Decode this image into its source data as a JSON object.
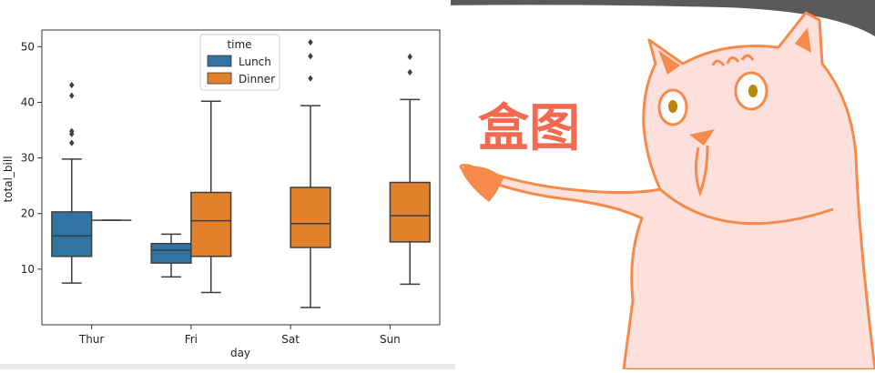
{
  "chart_data": {
    "type": "box",
    "title": "",
    "xlabel": "day",
    "ylabel": "total_bill",
    "categories": [
      "Thur",
      "Fri",
      "Sat",
      "Sun"
    ],
    "ylim": [
      0,
      53
    ],
    "yticks": [
      10,
      20,
      30,
      40,
      50
    ],
    "grid": false,
    "legend": {
      "title": "time",
      "position": "top-center"
    },
    "series": [
      {
        "name": "Lunch",
        "color": "#3274a1",
        "boxes": [
          {
            "category": "Thur",
            "whisker_low": 7.5,
            "q1": 12.3,
            "median": 16.0,
            "q3": 20.3,
            "whisker_high": 29.8,
            "outliers": [
              32.7,
              34.3,
              34.8,
              41.2,
              43.1
            ]
          },
          {
            "category": "Fri",
            "whisker_low": 8.6,
            "q1": 11.1,
            "median": 13.4,
            "q3": 14.6,
            "whisker_high": 16.3,
            "outliers": []
          }
        ]
      },
      {
        "name": "Dinner",
        "color": "#e1812c",
        "boxes": [
          {
            "category": "Thur",
            "whisker_low": 18.8,
            "q1": 18.8,
            "median": 18.8,
            "q3": 18.8,
            "whisker_high": 18.8,
            "outliers": []
          },
          {
            "category": "Fri",
            "whisker_low": 5.8,
            "q1": 12.3,
            "median": 18.7,
            "q3": 23.8,
            "whisker_high": 40.2,
            "outliers": []
          },
          {
            "category": "Sat",
            "whisker_low": 3.1,
            "q1": 13.9,
            "median": 18.2,
            "q3": 24.7,
            "whisker_high": 39.4,
            "outliers": [
              44.3,
              48.3,
              50.8
            ]
          },
          {
            "category": "Sun",
            "whisker_low": 7.3,
            "q1": 14.9,
            "median": 19.6,
            "q3": 25.6,
            "whisker_high": 40.5,
            "outliers": [
              45.4,
              48.2
            ]
          }
        ]
      }
    ]
  },
  "illustration": {
    "sticker_text": "盒图",
    "colors": {
      "cat_fill": "#fde0dc",
      "cat_outline": "#f58a4b",
      "sticker": "#f26a4f"
    }
  }
}
